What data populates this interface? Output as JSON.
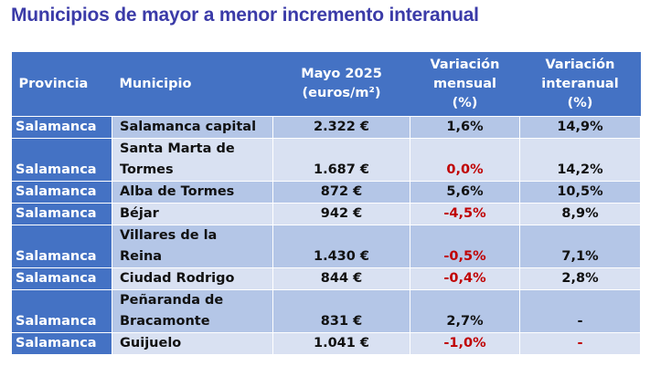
{
  "title": "Municipios de mayor a menor incremento interanual",
  "headers": [
    "Provincia",
    "Municipio",
    "Mayo 2025\n(euros/m²)",
    "Variación\nmensual\n(%)",
    "Variación\ninteranual\n(%)"
  ],
  "header_lines": {
    "provincia": "Provincia",
    "municipio": "Municipio",
    "mayo": [
      "Mayo 2025",
      "(euros/m²)"
    ],
    "mensual": [
      "Variación",
      "mensual",
      "(%)"
    ],
    "interanual": [
      "Variación",
      "interanual",
      "(%)"
    ]
  },
  "colors": {
    "header": "#4472c4",
    "row_dark": "#b4c6e7",
    "row_light": "#d9e1f2",
    "negative": "#c00000",
    "title": "#3b3ba8"
  },
  "rows": [
    {
      "provincia": "Salamanca",
      "municipio": [
        "Salamanca capital"
      ],
      "precio": "2.322 €",
      "mensual": "1,6%",
      "mensual_red": false,
      "interanual": "14,9%",
      "interanual_red": false
    },
    {
      "provincia": "Salamanca",
      "municipio": [
        "Santa Marta de",
        "Tormes"
      ],
      "precio": "1.687 €",
      "mensual": "0,0%",
      "mensual_red": true,
      "interanual": "14,2%",
      "interanual_red": false
    },
    {
      "provincia": "Salamanca",
      "municipio": [
        "Alba de Tormes"
      ],
      "precio": "872 €",
      "mensual": "5,6%",
      "mensual_red": false,
      "interanual": "10,5%",
      "interanual_red": false
    },
    {
      "provincia": "Salamanca",
      "municipio": [
        "Béjar"
      ],
      "precio": "942 €",
      "mensual": "-4,5%",
      "mensual_red": true,
      "interanual": "8,9%",
      "interanual_red": false
    },
    {
      "provincia": "Salamanca",
      "municipio": [
        "Villares de la",
        "Reina"
      ],
      "precio": "1.430 €",
      "mensual": "-0,5%",
      "mensual_red": true,
      "interanual": "7,1%",
      "interanual_red": false
    },
    {
      "provincia": "Salamanca",
      "municipio": [
        "Ciudad Rodrigo"
      ],
      "precio": "844 €",
      "mensual": "-0,4%",
      "mensual_red": true,
      "interanual": "2,8%",
      "interanual_red": false
    },
    {
      "provincia": "Salamanca",
      "municipio": [
        "Peñaranda de",
        "Bracamonte"
      ],
      "precio": "831 €",
      "mensual": "2,7%",
      "mensual_red": false,
      "interanual": "-",
      "interanual_red": false
    },
    {
      "provincia": "Salamanca",
      "municipio": [
        "Guijuelo"
      ],
      "precio": "1.041 €",
      "mensual": "-1,0%",
      "mensual_red": true,
      "interanual": "-",
      "interanual_red": true
    }
  ]
}
